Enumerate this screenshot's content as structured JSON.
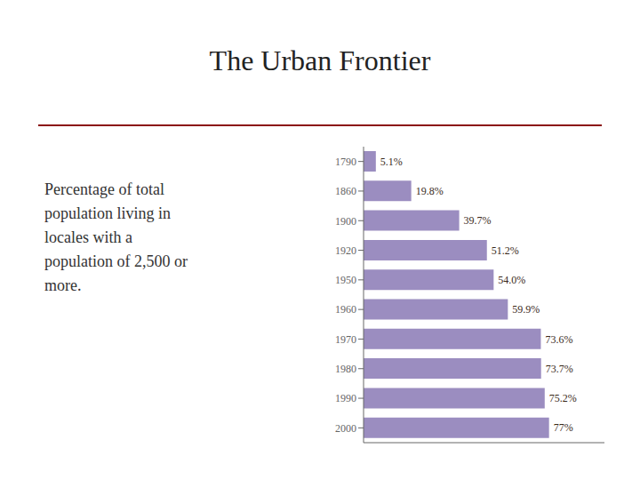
{
  "chart_data": {
    "type": "bar",
    "orientation": "horizontal",
    "title": "The Urban Frontier",
    "subtitle": "Percentage of total\npopulation living in\nlocales with a\npopulation of 2,500 or\nmore.",
    "categories": [
      "1790",
      "1860",
      "1900",
      "1920",
      "1950",
      "1960",
      "1970",
      "1980",
      "1990",
      "2000"
    ],
    "values": [
      5.1,
      19.8,
      39.7,
      51.2,
      54.0,
      59.9,
      73.6,
      73.7,
      75.2,
      77.0
    ],
    "value_labels": [
      "5.1%",
      "19.8%",
      "39.7%",
      "51.2%",
      "54.0%",
      "59.9%",
      "73.6%",
      "73.7%",
      "75.2%",
      "77%"
    ],
    "color": "#9b8dc0",
    "xlim": [
      0,
      100
    ],
    "tick_labels": "y"
  }
}
